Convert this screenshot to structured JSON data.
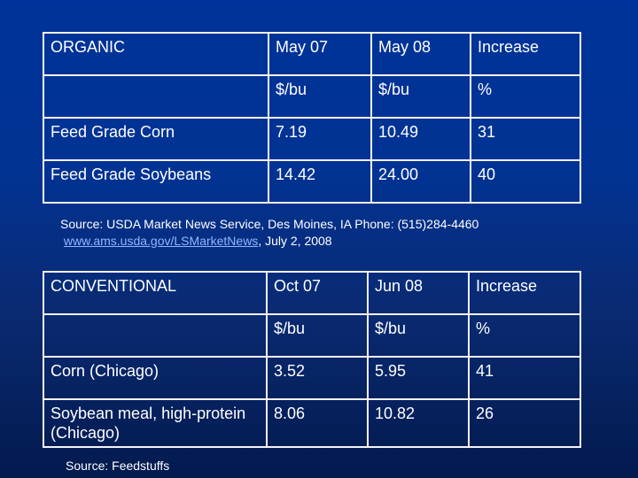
{
  "organic": {
    "header": [
      "ORGANIC",
      "May 07",
      "May 08",
      "Increase"
    ],
    "units": [
      "",
      "$/bu",
      "$/bu",
      "%"
    ],
    "rows": [
      [
        "Feed Grade Corn",
        "7.19",
        "10.49",
        "31"
      ],
      [
        "Feed Grade Soybeans",
        "14.42",
        "24.00",
        "40"
      ]
    ],
    "source_text": "Source: USDA Market News Service, Des Moines, IA Phone: (515)284-4460",
    "source_link": "www.ams.usda.gov/LSMarketNews",
    "source_date": ", July 2, 2008"
  },
  "conventional": {
    "header": [
      "CONVENTIONAL",
      "Oct 07",
      "Jun 08",
      "Increase"
    ],
    "units": [
      "",
      "$/bu",
      "$/bu",
      "%"
    ],
    "rows": [
      [
        "Corn (Chicago)",
        "3.52",
        "5.95",
        "41"
      ],
      [
        "Soybean meal, high-protein (Chicago)",
        "8.06",
        "10.82",
        "26"
      ]
    ],
    "source_text": "Source: Feedstuffs"
  },
  "colors": {
    "background": "#003399",
    "border": "#f4f4f4",
    "link": "#8fb8ff"
  }
}
